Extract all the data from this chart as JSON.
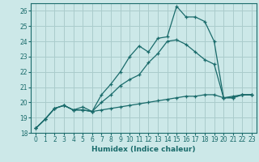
{
  "xlabel": "Humidex (Indice chaleur)",
  "bg_color": "#cce8e8",
  "grid_color": "#aacccc",
  "line_color": "#1a6b6b",
  "xlim": [
    -0.5,
    23.5
  ],
  "ylim": [
    18,
    26.5
  ],
  "xticks": [
    0,
    1,
    2,
    3,
    4,
    5,
    6,
    7,
    8,
    9,
    10,
    11,
    12,
    13,
    14,
    15,
    16,
    17,
    18,
    19,
    20,
    21,
    22,
    23
  ],
  "yticks": [
    18,
    19,
    20,
    21,
    22,
    23,
    24,
    25,
    26
  ],
  "lines": [
    {
      "x": [
        0,
        1,
        2,
        3,
        4,
        5,
        6,
        7,
        8,
        9,
        10,
        11,
        12,
        13,
        14,
        15,
        16,
        17,
        18,
        19,
        20,
        21,
        22,
        23
      ],
      "y": [
        18.3,
        18.9,
        19.6,
        19.8,
        19.5,
        19.5,
        19.4,
        19.5,
        19.6,
        19.7,
        19.8,
        19.9,
        20.0,
        20.1,
        20.2,
        20.3,
        20.4,
        20.4,
        20.5,
        20.5,
        20.3,
        20.3,
        20.5,
        20.5
      ]
    },
    {
      "x": [
        0,
        1,
        2,
        3,
        4,
        5,
        6,
        7,
        8,
        9,
        10,
        11,
        12,
        13,
        14,
        15,
        16,
        17,
        18,
        19,
        20,
        21,
        22,
        23
      ],
      "y": [
        18.3,
        18.9,
        19.6,
        19.8,
        19.5,
        19.5,
        19.4,
        20.0,
        20.5,
        21.1,
        21.5,
        21.8,
        22.6,
        23.2,
        24.0,
        24.1,
        23.8,
        23.3,
        22.8,
        22.5,
        20.3,
        20.3,
        20.5,
        20.5
      ]
    },
    {
      "x": [
        0,
        1,
        2,
        3,
        4,
        5,
        6,
        7,
        8,
        9,
        10,
        11,
        12,
        13,
        14,
        15,
        16,
        17,
        18,
        19,
        20,
        21,
        22,
        23
      ],
      "y": [
        18.3,
        18.9,
        19.6,
        19.8,
        19.5,
        19.7,
        19.4,
        20.5,
        21.2,
        22.0,
        23.0,
        23.7,
        23.3,
        24.2,
        24.3,
        26.3,
        25.6,
        25.6,
        25.3,
        24.0,
        20.3,
        20.4,
        20.5,
        20.5
      ]
    }
  ]
}
